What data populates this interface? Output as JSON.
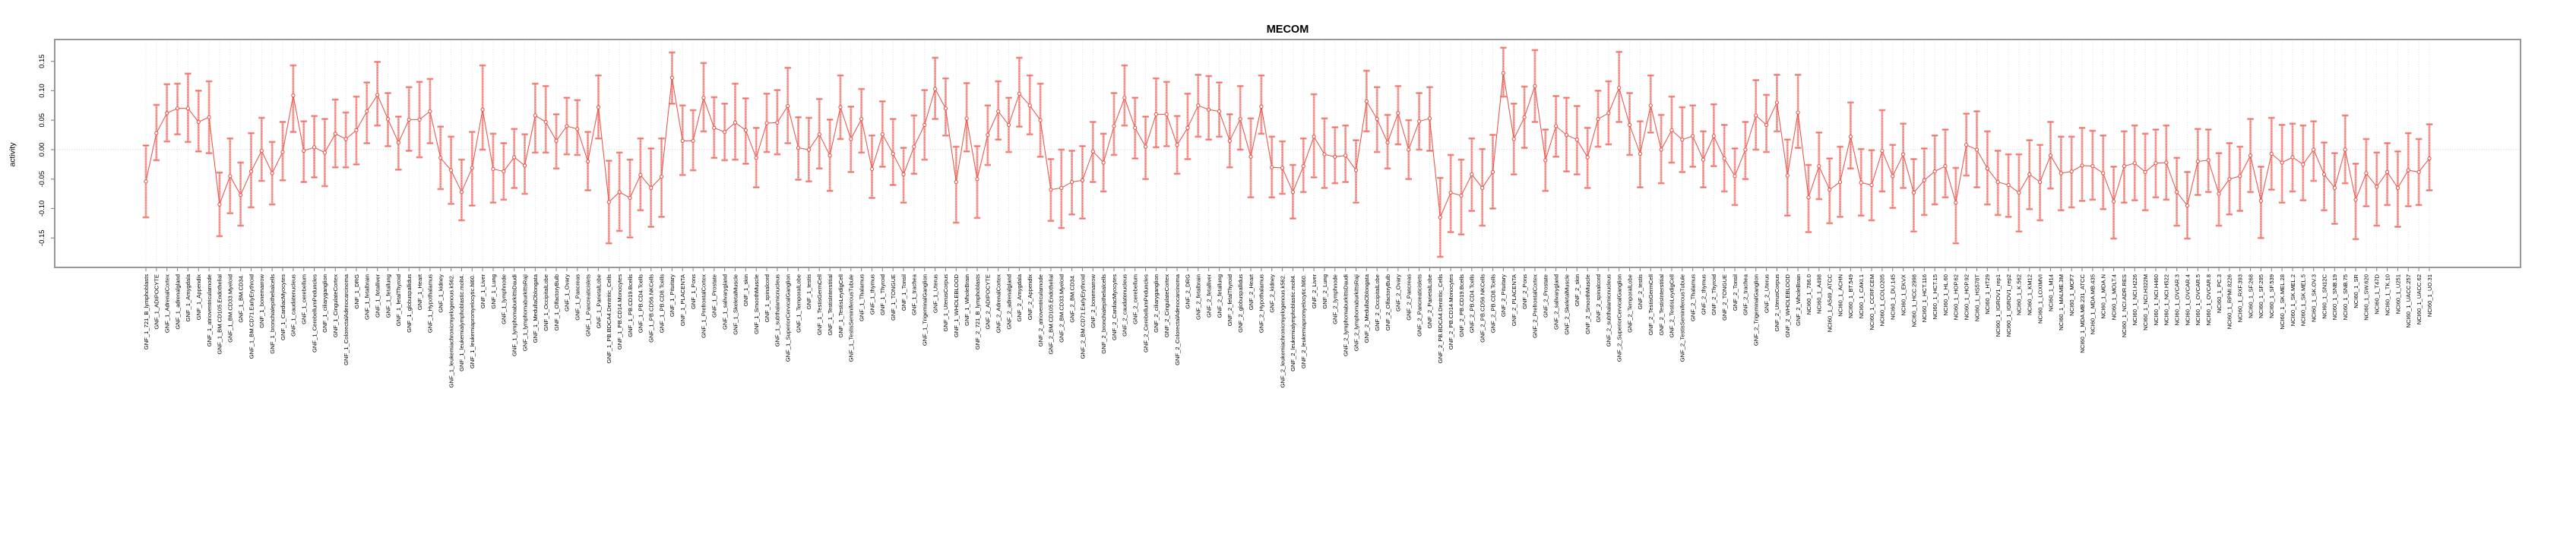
{
  "title": "MECOM",
  "colors": {
    "line": "#e9534a",
    "marker_stroke": "#e9534a",
    "marker_fill": "#ffffff",
    "error_bar": "#f5a6a1",
    "error_bar_overlay": "#e9534a",
    "grid": "#dadada",
    "zero_line": "#c7c7c7",
    "axis_box": "#8c8c8c",
    "tick": "#8c8c8c",
    "text": "#000000",
    "background": "#ffffff"
  },
  "chart_data": {
    "type": "line",
    "title": "MECOM",
    "xlabel": "",
    "ylabel": "activity",
    "ylim": [
      -0.2,
      0.187
    ],
    "ytick_values": [
      -0.15,
      -0.1,
      -0.05,
      0.0,
      0.05,
      0.1,
      0.15
    ],
    "ytick_labels": [
      "-0.15",
      "-0.10",
      "-0.05",
      "0.00",
      "0.05",
      "0.10",
      "0.15"
    ],
    "grid": "vertical dotted gridline at every sample; horizontal dotted line at 0",
    "legend_position": "none",
    "marker": "open-circle",
    "error_bars": true,
    "categories": [
      "GNF_1_721_B_lymphoblasts",
      "GNF_1_ADIPOCYTE",
      "GNF_1_AdrenalCortex",
      "GNF_1_adrenalgland",
      "GNF_1_Amygdala",
      "GNF_1_Appendix",
      "GNF_1_atrioventricularnode",
      "GNF_1_BM.CD105.Endothelial",
      "GNF_1_BM.CD33.Myeloid",
      "GNF_1_BM.CD34.",
      "GNF_1_BM.CD71.EarlyErythroid",
      "GNF_1_bonemarrow",
      "GNF_1_bronchialepithelialcells",
      "GNF_1_CardiacMyocytes",
      "GNF_1_caudatenucleus",
      "GNF_1_cerebellum",
      "GNF_1_CerebellumPeduncles",
      "GNF_1_ciliaryganglion",
      "GNF_1_CingulateCortex",
      "GNF_1_ColorectalAdenocarcinoma",
      "GNF_1_DRG",
      "GNF_1_fetalbrain",
      "GNF_1_fetalliver",
      "GNF_1_fetallung",
      "GNF_1_fetalThyroid",
      "GNF_1_globuspallidus",
      "GNF_1_Heart",
      "GNF_1_Hypothalamus",
      "GNF_1_kidney",
      "GNF_1_leukemiachronicmyelogenous.k562.",
      "GNF_1_leukemialymphoblastic.molt4.",
      "GNF_1_leukemiapromyelocytic.hl60.",
      "GNF_1_Liver",
      "GNF_1_Lung",
      "GNF_1_lymphnode",
      "GNF_1_lymphomaburkittsDaudi",
      "GNF_1_lymphomaburkittsRaji",
      "GNF_1_MedullaOblongata",
      "GNF_1_OccipitalLobe",
      "GNF_1_OlfactoryBulb",
      "GNF_1_Ovary",
      "GNF_1_Pancreas",
      "GNF_1_Pancreaticislets",
      "GNF_1_ParietalLobe",
      "GNF_1_PB.BDCA4.Dentritic_Cells",
      "GNF_1_PB.CD14.Monocytes",
      "GNF_1_PB.CD19.Bcells",
      "GNF_1_PB.CD4.Tcells",
      "GNF_1_PB.CD56.NKCells",
      "GNF_1_PB.CD8.Tcells",
      "GNF_1_Pituitary",
      "GNF_1_PLACENTA",
      "GNF_1_Pons",
      "GNF_1_PrefrontalCortex",
      "GNF_1_Prostate",
      "GNF_1_salivarygland",
      "GNF_1_SkeletalMuscle",
      "GNF_1_skin",
      "GNF_1_SmoothMuscle",
      "GNF_1_spinalcord",
      "GNF_1_subthalamicnucleus",
      "GNF_1_SuperiorCervicalGanglion",
      "GNF_1_TemporalLobe",
      "GNF_1_testis",
      "GNF_1_TestisGermCell",
      "GNF_1_TestisInterstitial",
      "GNF_1_TestisLeydigCell",
      "GNF_1_TestisSeminiferousTubule",
      "GNF_1_Thalamus",
      "GNF_1_thymus",
      "GNF_1_Thyroid",
      "GNF_1_TONGUE",
      "GNF_1_Tonsil",
      "GNF_1_trachea",
      "GNF_1_TrigeminalGanglion",
      "GNF_1_Uterus",
      "GNF_1_UterusCorpus",
      "GNF_1_WHOLEBLOOD",
      "GNF_1_WholeBrain",
      "GNF_2_721_B_lymphoblasts",
      "GNF_2_ADIPOCYTE",
      "GNF_2_AdrenalCortex",
      "GNF_2_adrenalgland",
      "GNF_2_Amygdala",
      "GNF_2_Appendix",
      "GNF_2_atrioventricularnode",
      "GNF_2_BM.CD105.Endothelial",
      "GNF_2_BM.CD33.Myeloid",
      "GNF_2_BM.CD34.",
      "GNF_2_BM.CD71.EarlyErythroid",
      "GNF_2_bonemarrow",
      "GNF_2_bronchialepithelialcells",
      "GNF_2_CardiacMyocytes",
      "GNF_2_caudatenucleus",
      "GNF_2_cerebellum",
      "GNF_2_CerebellumPeduncles",
      "GNF_2_ciliaryganglion",
      "GNF_2_CingulateCortex",
      "GNF_2_ColorectalAdenocarcinoma",
      "GNF_2_DRG",
      "GNF_2_fetalbrain",
      "GNF_2_fetalliver",
      "GNF_2_fetallung",
      "GNF_2_fetalThyroid",
      "GNF_2_globuspallidus",
      "GNF_2_Heart",
      "GNF_2_Hypothalamus",
      "GNF_2_kidney",
      "GNF_2_leukemiachronicmyelogenous.k562.",
      "GNF_2_leukemialymphoblastic.molt4.",
      "GNF_2_leukemiapromyelocytic.hl60.",
      "GNF_2_Liver",
      "GNF_2_Lung",
      "GNF_2_lymphnode",
      "GNF_2_lymphomaburkittsDaudi",
      "GNF_2_lymphomaburkittsRaji",
      "GNF_2_MedullaOblongata",
      "GNF_2_OccipitalLobe",
      "GNF_2_OlfactoryBulb",
      "GNF_2_Ovary",
      "GNF_2_Pancreas",
      "GNF_2_Pancreaticislets",
      "GNF_2_ParietalLobe",
      "GNF_2_PB.BDCA4.Dentritic_Cells",
      "GNF_2_PB.CD14.Monocytes",
      "GNF_2_PB.CD19.Bcells",
      "GNF_2_PB.CD4.Tcells",
      "GNF_2_PB.CD56.NKCells",
      "GNF_2_PB.CD8.Tcells",
      "GNF_2_Pituitary",
      "GNF_2_PLACENTA",
      "GNF_2_Pons",
      "GNF_2_PrefrontalCortex",
      "GNF_2_Prostate",
      "GNF_2_salivarygland",
      "GNF_2_SkeletalMuscle",
      "GNF_2_skin",
      "GNF_2_SmoothMuscle",
      "GNF_2_spinalcord",
      "GNF_2_subthalamicnucleus",
      "GNF_2_SuperiorCervicalGanglion",
      "GNF_2_TemporalLobe",
      "GNF_2_testis",
      "GNF_2_TestisGermCell",
      "GNF_2_TestisInterstitial",
      "GNF_2_TestisLeydigCell",
      "GNF_2_TestisSeminiferousTubule",
      "GNF_2_Thalamus",
      "GNF_2_thymus",
      "GNF_2_Thyroid",
      "GNF_2_TONGUE",
      "GNF_2_Tonsil",
      "GNF_2_trachea",
      "GNF_2_TrigeminalGanglion",
      "GNF_2_Uterus",
      "GNF_2_UterusCorpus",
      "GNF_2_WHOLEBLOOD",
      "GNF_2_WholeBrain",
      "NCI60_1_786.0",
      "NCI60_1_A498",
      "NCI60_1_A549_ATCC",
      "NCI60_1_ACHN",
      "NCI60_1_BT.549",
      "NCI60_1_CAKI.1",
      "NCI60_1_CCRF.CEM",
      "NCI60_1_COLO205",
      "NCI60_1_DU.145",
      "NCI60_1_EKVX",
      "NCI60_1_HCC.2998",
      "NCI60_1_HCT.116",
      "NCI60_1_HCT.15",
      "NCI60_1_HL.60",
      "NCI60_1_HOP.62",
      "NCI60_1_HOP.92",
      "NCI60_1_HS578T",
      "NCI60_1_HT29",
      "NCI60_1_IGROV1_rep1",
      "NCI60_1_IGROV1_rep2",
      "NCI60_1_K.562",
      "NCI60_1_KM12",
      "NCI60_1_LOXIMVI",
      "NCI60_1_M14",
      "NCI60_1_MALME.3M",
      "NCI60_1_MCF7",
      "NCI60_1_MDA.MB.231_ATCC",
      "NCI60_1_MDA.MB.435",
      "NCI60_1_MDA.N",
      "NCI60_1_MOLT.4",
      "NCI60_1_NCI.ADR.RES",
      "NCI60_1_NCI.H226",
      "NCI60_1_NCI.H322M",
      "NCI60_1_NCI.H460",
      "NCI60_1_NCI.H522",
      "NCI60_1_OVCAR.3",
      "NCI60_1_OVCAR.4",
      "NCI60_1_OVCAR.5",
      "NCI60_1_OVCAR.8",
      "NCI60_1_PC.3",
      "NCI60_1_RPMI.8226",
      "NCI60_1_RXF.393",
      "NCI60_1_SF.268",
      "NCI60_1_SF.295",
      "NCI60_1_SF.539",
      "NCI60_1_SK.MEL.28",
      "NCI60_1_SK.MEL.2",
      "NCI60_1_SK.MEL.5",
      "NCI60_1_SK.OV.3",
      "NCI60_1_SN12C",
      "NCI60_1_SNB.19",
      "NCI60_1_SNB.75",
      "NCI60_1_SR",
      "NCI60_1_SW.620",
      "NCI60_1_T47D",
      "NCI60_1_TK.10",
      "NCI60_1_U251",
      "NCI60_1_UACC.257",
      "NCI60_1_UACC.62",
      "NCI60_1_UO.31"
    ],
    "series": [
      {
        "name": "activity",
        "values": [
          -0.054,
          0.028,
          0.062,
          0.07,
          0.07,
          0.047,
          0.055,
          -0.093,
          -0.045,
          -0.077,
          -0.037,
          -0.002,
          -0.04,
          -0.004,
          0.092,
          -0.002,
          0.004,
          -0.005,
          0.027,
          0.018,
          0.033,
          0.065,
          0.093,
          0.052,
          0.012,
          0.051,
          0.051,
          0.065,
          -0.014,
          -0.035,
          -0.072,
          -0.031,
          0.068,
          -0.033,
          -0.037,
          -0.013,
          -0.027,
          0.058,
          0.047,
          0.015,
          0.04,
          0.035,
          -0.02,
          0.072,
          -0.089,
          -0.072,
          -0.082,
          -0.043,
          -0.065,
          -0.046,
          0.122,
          0.015,
          0.015,
          0.088,
          0.037,
          0.03,
          0.046,
          0.033,
          -0.014,
          0.045,
          0.046,
          0.074,
          0.003,
          0.0,
          0.026,
          -0.01,
          0.072,
          0.018,
          0.052,
          -0.033,
          0.026,
          -0.007,
          -0.042,
          0.005,
          0.042,
          0.103,
          0.07,
          -0.055,
          0.053,
          -0.05,
          0.025,
          0.065,
          0.042,
          0.095,
          0.075,
          0.05,
          -0.068,
          -0.065,
          -0.055,
          -0.052,
          -0.003,
          -0.022,
          0.04,
          0.088,
          0.037,
          0.005,
          0.06,
          0.06,
          0.008,
          0.037,
          0.075,
          0.068,
          0.065,
          0.015,
          0.052,
          -0.012,
          0.073,
          -0.03,
          -0.031,
          -0.072,
          -0.028,
          0.022,
          -0.008,
          -0.012,
          -0.01,
          -0.035,
          0.082,
          0.052,
          0.012,
          0.062,
          0.0,
          0.048,
          0.053,
          -0.115,
          -0.073,
          -0.078,
          -0.042,
          -0.065,
          -0.038,
          0.13,
          0.018,
          0.055,
          0.108,
          -0.018,
          0.04,
          0.025,
          0.017,
          -0.013,
          0.052,
          0.062,
          0.105,
          0.042,
          -0.007,
          0.075,
          0.0,
          0.033,
          0.017,
          0.023,
          -0.017,
          0.023,
          -0.015,
          -0.045,
          0.0,
          0.058,
          0.042,
          0.08,
          -0.044,
          0.063,
          -0.081,
          -0.028,
          -0.068,
          -0.055,
          0.022,
          -0.056,
          -0.06,
          -0.002,
          -0.045,
          -0.008,
          -0.073,
          -0.052,
          -0.037,
          -0.028,
          -0.09,
          0.008,
          0.0,
          -0.032,
          -0.055,
          -0.06,
          -0.073,
          -0.042,
          -0.055,
          -0.01,
          -0.04,
          -0.037,
          -0.027,
          -0.028,
          -0.04,
          -0.088,
          -0.028,
          -0.023,
          -0.038,
          -0.023,
          -0.022,
          -0.072,
          -0.095,
          -0.02,
          -0.018,
          -0.075,
          -0.05,
          -0.045,
          -0.01,
          -0.087,
          -0.007,
          -0.022,
          -0.013,
          -0.025,
          0.0,
          -0.042,
          -0.065,
          0.0,
          -0.085,
          -0.04,
          -0.063,
          -0.038,
          -0.065,
          -0.035,
          -0.038,
          -0.015
        ],
        "err_lo": [
          -0.115,
          -0.018,
          0.014,
          0.026,
          0.013,
          -0.003,
          -0.006,
          -0.147,
          -0.108,
          -0.129,
          -0.098,
          -0.053,
          -0.093,
          -0.052,
          0.03,
          -0.055,
          -0.047,
          -0.062,
          -0.03,
          -0.03,
          -0.025,
          0.011,
          0.041,
          0.006,
          -0.034,
          -0.002,
          -0.013,
          0.011,
          -0.067,
          -0.092,
          -0.12,
          -0.095,
          0.0,
          -0.09,
          -0.085,
          -0.065,
          -0.075,
          -0.005,
          -0.005,
          -0.032,
          -0.008,
          -0.009,
          -0.069,
          0.019,
          -0.159,
          -0.138,
          -0.149,
          -0.103,
          -0.131,
          -0.114,
          0.078,
          -0.043,
          -0.035,
          0.031,
          -0.014,
          -0.018,
          -0.017,
          -0.024,
          -0.064,
          -0.004,
          -0.008,
          0.011,
          -0.051,
          -0.054,
          -0.032,
          -0.07,
          0.018,
          -0.038,
          -0.005,
          -0.082,
          -0.029,
          -0.06,
          -0.09,
          -0.041,
          -0.017,
          0.052,
          0.024,
          -0.124,
          -0.003,
          -0.116,
          -0.026,
          0.017,
          -0.004,
          0.039,
          0.026,
          -0.012,
          -0.121,
          -0.133,
          -0.11,
          -0.117,
          -0.055,
          -0.071,
          -0.009,
          0.041,
          -0.015,
          -0.05,
          0.004,
          0.006,
          -0.041,
          -0.016,
          0.022,
          0.017,
          0.022,
          -0.03,
          0.0,
          -0.081,
          0.027,
          -0.081,
          -0.075,
          -0.117,
          -0.072,
          -0.047,
          -0.065,
          -0.057,
          -0.055,
          -0.09,
          0.031,
          -0.004,
          -0.032,
          0.009,
          -0.05,
          0.0,
          -0.002,
          -0.182,
          -0.14,
          -0.144,
          -0.104,
          -0.129,
          -0.1,
          0.09,
          -0.042,
          0.003,
          0.047,
          -0.07,
          -0.012,
          -0.037,
          -0.042,
          -0.065,
          0.005,
          0.009,
          0.047,
          -0.009,
          -0.064,
          0.029,
          -0.057,
          -0.022,
          -0.038,
          -0.029,
          -0.064,
          -0.028,
          -0.071,
          -0.094,
          -0.05,
          0.0,
          -0.004,
          0.031,
          -0.112,
          0.003,
          -0.14,
          -0.084,
          -0.125,
          -0.114,
          -0.032,
          -0.112,
          -0.12,
          -0.071,
          -0.099,
          -0.065,
          -0.139,
          -0.111,
          -0.093,
          -0.081,
          -0.159,
          -0.044,
          -0.064,
          -0.093,
          -0.111,
          -0.114,
          -0.139,
          -0.101,
          -0.12,
          -0.066,
          -0.103,
          -0.098,
          -0.087,
          -0.085,
          -0.101,
          -0.151,
          -0.09,
          -0.086,
          -0.103,
          -0.081,
          -0.085,
          -0.129,
          -0.151,
          -0.077,
          -0.072,
          -0.129,
          -0.11,
          -0.104,
          -0.072,
          -0.15,
          -0.068,
          -0.09,
          -0.071,
          -0.086,
          -0.053,
          -0.103,
          -0.126,
          -0.057,
          -0.152,
          -0.096,
          -0.129,
          -0.094,
          -0.131,
          -0.096,
          -0.094,
          -0.069
        ],
        "err_hi": [
          0.007,
          0.076,
          0.111,
          0.112,
          0.129,
          0.1,
          0.116,
          -0.039,
          0.019,
          -0.022,
          0.028,
          0.054,
          0.013,
          0.047,
          0.143,
          0.048,
          0.057,
          0.052,
          0.085,
          0.063,
          0.09,
          0.114,
          0.149,
          0.096,
          0.056,
          0.106,
          0.115,
          0.12,
          0.039,
          0.022,
          -0.017,
          0.03,
          0.143,
          0.027,
          0.011,
          0.035,
          0.026,
          0.112,
          0.108,
          0.06,
          0.088,
          0.084,
          0.03,
          0.126,
          -0.019,
          -0.005,
          -0.017,
          0.019,
          0.002,
          0.019,
          0.165,
          0.075,
          0.067,
          0.147,
          0.089,
          0.078,
          0.112,
          0.087,
          0.037,
          0.095,
          0.101,
          0.139,
          0.055,
          0.054,
          0.086,
          0.051,
          0.126,
          0.073,
          0.103,
          0.024,
          0.082,
          0.052,
          0.003,
          0.058,
          0.101,
          0.156,
          0.121,
          0.005,
          0.113,
          0.006,
          0.075,
          0.116,
          0.088,
          0.156,
          0.126,
          0.112,
          -0.016,
          0.0,
          -0.002,
          0.006,
          0.047,
          0.027,
          0.096,
          0.143,
          0.088,
          0.056,
          0.121,
          0.115,
          0.057,
          0.095,
          0.127,
          0.125,
          0.114,
          0.06,
          0.108,
          0.053,
          0.126,
          0.022,
          0.014,
          -0.026,
          0.019,
          0.094,
          0.053,
          0.038,
          0.041,
          0.016,
          0.134,
          0.106,
          0.059,
          0.108,
          0.05,
          0.096,
          0.106,
          -0.048,
          -0.009,
          -0.017,
          0.019,
          0.001,
          0.025,
          0.173,
          0.078,
          0.107,
          0.169,
          0.034,
          0.091,
          0.088,
          0.074,
          0.037,
          0.1,
          0.116,
          0.166,
          0.096,
          0.048,
          0.126,
          0.059,
          0.09,
          0.072,
          0.075,
          0.031,
          0.077,
          0.042,
          0.002,
          0.047,
          0.118,
          0.093,
          0.127,
          0.017,
          0.127,
          -0.026,
          0.029,
          -0.015,
          0.005,
          0.08,
          0.001,
          -0.001,
          0.067,
          0.008,
          0.044,
          -0.016,
          0.002,
          0.024,
          0.034,
          -0.031,
          0.061,
          0.065,
          0.031,
          -0.002,
          -0.008,
          -0.008,
          0.016,
          0.008,
          0.047,
          0.022,
          0.022,
          0.037,
          0.032,
          0.024,
          -0.029,
          0.031,
          0.041,
          0.027,
          0.034,
          0.041,
          -0.014,
          -0.038,
          0.035,
          0.034,
          -0.006,
          0.011,
          0.005,
          0.052,
          -0.029,
          0.054,
          0.042,
          0.044,
          0.041,
          0.048,
          0.012,
          -0.006,
          0.058,
          -0.024,
          0.018,
          -0.005,
          0.011,
          -0.003,
          0.028,
          0.018,
          0.043
        ]
      }
    ]
  }
}
